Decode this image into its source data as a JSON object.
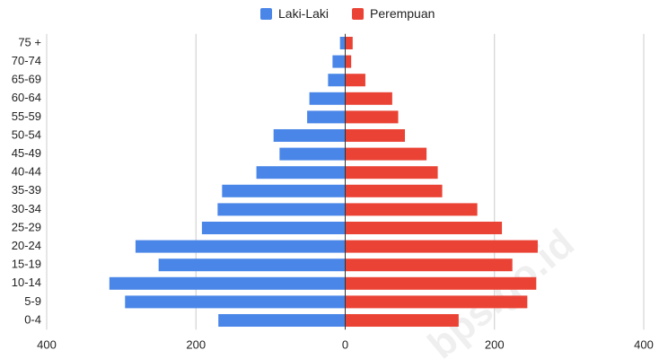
{
  "chart_data": {
    "type": "hbar-pyramid",
    "categories": [
      "75 +",
      "70-74",
      "65-69",
      "60-64",
      "55-59",
      "50-54",
      "45-49",
      "40-44",
      "35-39",
      "30-34",
      "25-29",
      "20-24",
      "15-19",
      "10-14",
      "5-9",
      "0-4"
    ],
    "series": [
      {
        "name": "Laki-Laki",
        "color": "#4a86e8",
        "values": [
          -7,
          -17,
          -23,
          -48,
          -51,
          -96,
          -88,
          -119,
          -165,
          -171,
          -192,
          -281,
          -250,
          -316,
          -295,
          -170
        ]
      },
      {
        "name": "Perempuan",
        "color": "#ea4335",
        "values": [
          10,
          8,
          27,
          63,
          71,
          80,
          109,
          124,
          130,
          177,
          210,
          258,
          224,
          256,
          244,
          152
        ]
      }
    ],
    "xlim": [
      -400,
      400
    ],
    "xticks": [
      {
        "value": -400,
        "label": "400"
      },
      {
        "value": -200,
        "label": "200"
      },
      0,
      200,
      400
    ],
    "grid": true,
    "legend": "top",
    "watermark": "bps.go.id"
  }
}
